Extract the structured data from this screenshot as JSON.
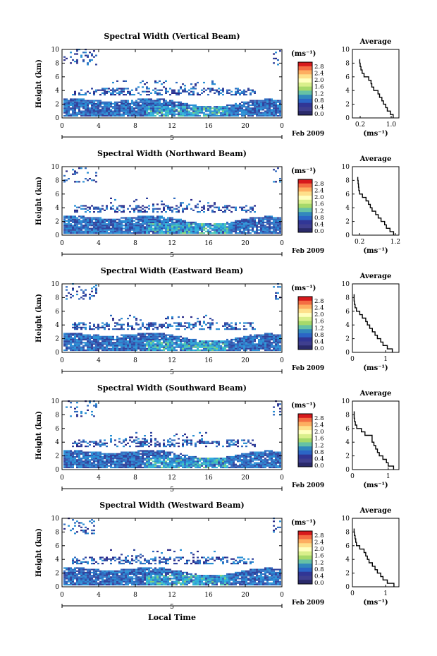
{
  "figure": {
    "xlabel": "Local Time",
    "units_label": "(ms⁻¹)",
    "colorbar_ticks": [
      "2.8",
      "2.4",
      "2.0",
      "1.6",
      "1.2",
      "0.8",
      "0.4",
      "0.0"
    ],
    "colorbar_colors": [
      "#d7191c",
      "#f46d43",
      "#fdae61",
      "#fee08b",
      "#ffffbf",
      "#d9ef8b",
      "#a6d96a",
      "#66c2a5",
      "#3288bd",
      "#2b65c6",
      "#313695",
      "#3f3f8f",
      "#2a2a6a"
    ],
    "date_label": "Feb 2009",
    "day_label": "5",
    "avg_title": "Average",
    "avg_xlabel": "(ms⁻¹)"
  },
  "chart_data": [
    {
      "type": "heatmap",
      "title": "Spectral Width (Vertical Beam)",
      "ylabel": "Height (km)",
      "x_ticks": [
        "0",
        "4",
        "8",
        "12",
        "16",
        "20",
        "0"
      ],
      "y_ticks": [
        "0",
        "2",
        "4",
        "6",
        "8",
        "10"
      ],
      "xlim": [
        0,
        24
      ],
      "ylim": [
        0,
        10
      ],
      "profile": {
        "x_ticks": [
          "0.2",
          "1.0"
        ],
        "xlim": [
          0,
          1.2
        ],
        "ylim": [
          0,
          10
        ],
        "heights": [
          0,
          0.5,
          1,
          1.5,
          2,
          2.5,
          3,
          3.5,
          4,
          4.5,
          5,
          5.5,
          6,
          6.5,
          7,
          7.5,
          8,
          8.5
        ],
        "values": [
          1.05,
          0.98,
          0.9,
          0.86,
          0.8,
          0.76,
          0.7,
          0.66,
          0.55,
          0.5,
          0.48,
          0.42,
          0.3,
          0.25,
          0.22,
          0.2,
          0.19,
          0.18
        ]
      }
    },
    {
      "type": "heatmap",
      "title": "Spectral Width (Northward Beam)",
      "ylabel": "Height (km)",
      "x_ticks": [
        "0",
        "4",
        "8",
        "12",
        "16",
        "20",
        "0"
      ],
      "y_ticks": [
        "0",
        "2",
        "4",
        "6",
        "8",
        "10"
      ],
      "xlim": [
        0,
        24
      ],
      "ylim": [
        0,
        10
      ],
      "profile": {
        "x_ticks": [
          "0.2",
          "1.2"
        ],
        "xlim": [
          0,
          1.3
        ],
        "ylim": [
          0,
          10
        ],
        "heights": [
          0,
          0.5,
          1,
          1.5,
          2,
          2.5,
          3,
          3.5,
          4,
          4.5,
          5,
          5.5,
          6,
          6.5,
          7,
          7.5,
          8,
          8.5
        ],
        "values": [
          1.15,
          1.05,
          0.95,
          0.9,
          0.8,
          0.72,
          0.65,
          0.55,
          0.5,
          0.45,
          0.38,
          0.28,
          0.2,
          0.18,
          0.17,
          0.16,
          0.15,
          0.15
        ]
      }
    },
    {
      "type": "heatmap",
      "title": "Spectral Width (Eastward Beam)",
      "ylabel": "Height (km)",
      "x_ticks": [
        "0",
        "4",
        "8",
        "12",
        "16",
        "20",
        "0"
      ],
      "y_ticks": [
        "0",
        "2",
        "4",
        "6",
        "8",
        "10"
      ],
      "xlim": [
        0,
        24
      ],
      "ylim": [
        0,
        10
      ],
      "profile": {
        "x_ticks": [
          "0",
          "1"
        ],
        "xlim": [
          0,
          1.4
        ],
        "ylim": [
          0,
          10
        ],
        "heights": [
          0,
          0.5,
          1,
          1.5,
          2,
          2.5,
          3,
          3.5,
          4,
          4.5,
          5,
          5.5,
          6,
          6.5,
          7,
          7.5,
          8,
          8.5
        ],
        "values": [
          1.2,
          1.05,
          0.92,
          0.85,
          0.75,
          0.68,
          0.6,
          0.52,
          0.45,
          0.4,
          0.3,
          0.22,
          0.12,
          0.08,
          0.06,
          0.05,
          0.05,
          0.05
        ]
      }
    },
    {
      "type": "heatmap",
      "title": "Spectral Width (Southward Beam)",
      "ylabel": "Height (km)",
      "x_ticks": [
        "0",
        "4",
        "8",
        "12",
        "16",
        "20",
        "0"
      ],
      "y_ticks": [
        "0",
        "2",
        "4",
        "6",
        "8",
        "10"
      ],
      "xlim": [
        0,
        24
      ],
      "ylim": [
        0,
        10
      ],
      "profile": {
        "x_ticks": [
          "0",
          "1"
        ],
        "xlim": [
          0,
          1.3
        ],
        "ylim": [
          0,
          10
        ],
        "heights": [
          0,
          0.5,
          1,
          1.5,
          2,
          2.5,
          3,
          3.5,
          4,
          4.5,
          5,
          5.5,
          6,
          6.5,
          7,
          7.5,
          8,
          8.5
        ],
        "values": [
          1.15,
          1.0,
          0.95,
          0.85,
          0.75,
          0.7,
          0.65,
          0.6,
          0.55,
          0.55,
          0.35,
          0.25,
          0.12,
          0.08,
          0.06,
          0.05,
          0.05,
          0.05
        ]
      }
    },
    {
      "type": "heatmap",
      "title": "Spectral Width (Westward Beam)",
      "ylabel": "Height (km)",
      "x_ticks": [
        "0",
        "4",
        "8",
        "12",
        "16",
        "20",
        "0"
      ],
      "y_ticks": [
        "0",
        "2",
        "4",
        "6",
        "8",
        "10"
      ],
      "xlim": [
        0,
        24
      ],
      "ylim": [
        0,
        10
      ],
      "profile": {
        "x_ticks": [
          "0",
          "1"
        ],
        "xlim": [
          0,
          1.4
        ],
        "ylim": [
          0,
          10
        ],
        "heights": [
          0,
          0.5,
          1,
          1.5,
          2,
          2.5,
          3,
          3.5,
          4,
          4.5,
          5,
          5.5,
          6,
          6.5,
          7,
          7.5,
          8,
          8.5
        ],
        "values": [
          1.25,
          1.05,
          0.92,
          0.85,
          0.75,
          0.68,
          0.6,
          0.5,
          0.45,
          0.4,
          0.35,
          0.22,
          0.12,
          0.1,
          0.08,
          0.06,
          0.05,
          0.05
        ]
      }
    }
  ]
}
